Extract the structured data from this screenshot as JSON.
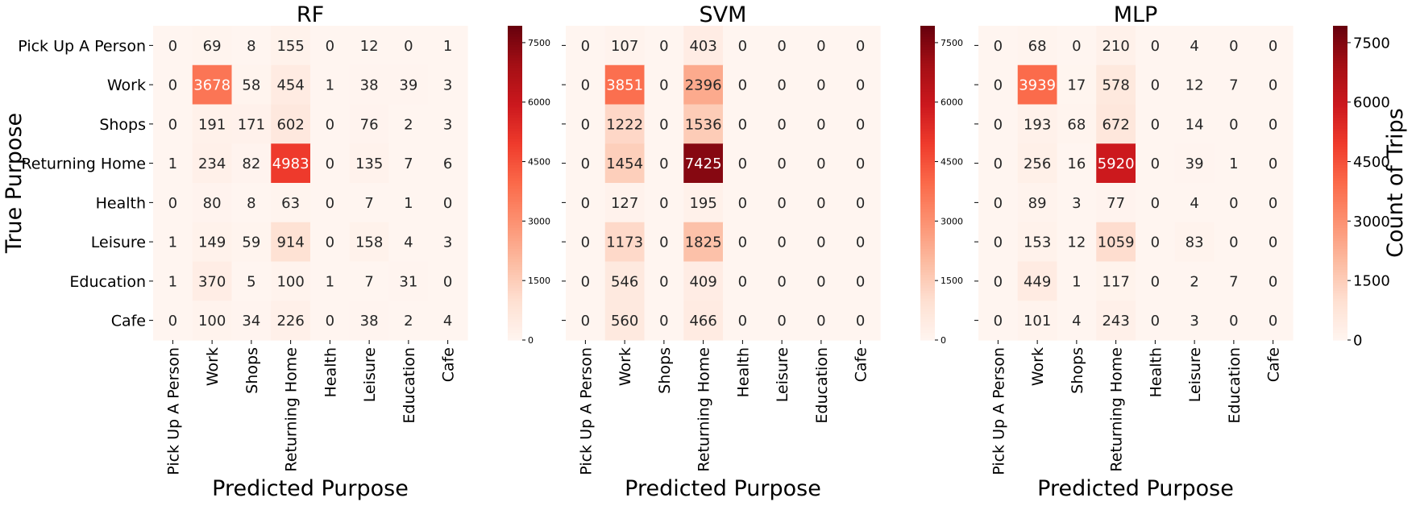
{
  "shared": {
    "labels": [
      "Pick Up A Person",
      "Work",
      "Shops",
      "Returning Home",
      "Health",
      "Leisure",
      "Education",
      "Cafe"
    ],
    "xlabel": "Predicted Purpose",
    "ylabel": "True Purpose",
    "colorbar_label": "Count of Trips",
    "colorbar_ticks": [
      "0",
      "1500",
      "3000",
      "4500",
      "6000",
      "7500"
    ],
    "vmin": 0,
    "vmax": 7925
  },
  "chart_data": [
    {
      "type": "heatmap",
      "title": "RF",
      "xlabel": "Predicted Purpose",
      "ylabel": "True Purpose",
      "x_categories": [
        "Pick Up A Person",
        "Work",
        "Shops",
        "Returning Home",
        "Health",
        "Leisure",
        "Education",
        "Cafe"
      ],
      "y_categories": [
        "Pick Up A Person",
        "Work",
        "Shops",
        "Returning Home",
        "Health",
        "Leisure",
        "Education",
        "Cafe"
      ],
      "values": [
        [
          0,
          69,
          8,
          155,
          0,
          12,
          0,
          1
        ],
        [
          0,
          3678,
          58,
          454,
          1,
          38,
          39,
          3
        ],
        [
          0,
          191,
          171,
          602,
          0,
          76,
          2,
          3
        ],
        [
          1,
          234,
          82,
          4983,
          0,
          135,
          7,
          6
        ],
        [
          0,
          80,
          8,
          63,
          0,
          7,
          1,
          0
        ],
        [
          1,
          149,
          59,
          914,
          0,
          158,
          4,
          3
        ],
        [
          1,
          370,
          5,
          100,
          1,
          7,
          31,
          0
        ],
        [
          0,
          100,
          34,
          226,
          0,
          38,
          2,
          4
        ]
      ]
    },
    {
      "type": "heatmap",
      "title": "SVM",
      "xlabel": "Predicted Purpose",
      "x_categories": [
        "Pick Up A Person",
        "Work",
        "Shops",
        "Returning Home",
        "Health",
        "Leisure",
        "Education",
        "Cafe"
      ],
      "y_categories": [
        "Pick Up A Person",
        "Work",
        "Shops",
        "Returning Home",
        "Health",
        "Leisure",
        "Education",
        "Cafe"
      ],
      "values": [
        [
          0,
          107,
          0,
          403,
          0,
          0,
          0,
          0
        ],
        [
          0,
          3851,
          0,
          2396,
          0,
          0,
          0,
          0
        ],
        [
          0,
          1222,
          0,
          1536,
          0,
          0,
          0,
          0
        ],
        [
          0,
          1454,
          0,
          7425,
          0,
          0,
          0,
          0
        ],
        [
          0,
          127,
          0,
          195,
          0,
          0,
          0,
          0
        ],
        [
          0,
          1173,
          0,
          1825,
          0,
          0,
          0,
          0
        ],
        [
          0,
          546,
          0,
          409,
          0,
          0,
          0,
          0
        ],
        [
          0,
          560,
          0,
          466,
          0,
          0,
          0,
          0
        ]
      ]
    },
    {
      "type": "heatmap",
      "title": "MLP",
      "xlabel": "Predicted Purpose",
      "colorbar_label": "Count of Trips",
      "x_categories": [
        "Pick Up A Person",
        "Work",
        "Shops",
        "Returning Home",
        "Health",
        "Leisure",
        "Education",
        "Cafe"
      ],
      "y_categories": [
        "Pick Up A Person",
        "Work",
        "Shops",
        "Returning Home",
        "Health",
        "Leisure",
        "Education",
        "Cafe"
      ],
      "values": [
        [
          0,
          68,
          0,
          210,
          0,
          4,
          0,
          0
        ],
        [
          0,
          3939,
          17,
          578,
          0,
          12,
          7,
          0
        ],
        [
          0,
          193,
          68,
          672,
          0,
          14,
          0,
          0
        ],
        [
          0,
          256,
          16,
          5920,
          0,
          39,
          1,
          0
        ],
        [
          0,
          89,
          3,
          77,
          0,
          4,
          0,
          0
        ],
        [
          0,
          153,
          12,
          1059,
          0,
          83,
          0,
          0
        ],
        [
          0,
          449,
          1,
          117,
          0,
          2,
          7,
          0
        ],
        [
          0,
          101,
          4,
          243,
          0,
          3,
          0,
          0
        ]
      ]
    }
  ]
}
